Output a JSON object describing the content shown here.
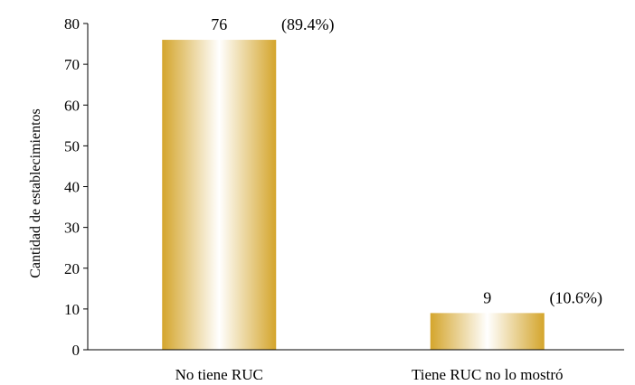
{
  "chart_data": {
    "type": "bar",
    "title": "",
    "xlabel": "",
    "ylabel": "Cantidad de establecimientos",
    "ylim": [
      0,
      80
    ],
    "yticks": [
      0,
      10,
      20,
      30,
      40,
      50,
      60,
      70,
      80
    ],
    "grid": false,
    "legend": "none",
    "categories": [
      "No tiene RUC",
      "Tiene RUC no lo mostró"
    ],
    "values": [
      76,
      9
    ],
    "value_labels": [
      "76",
      "9"
    ],
    "percent_labels": [
      "(89.4%)",
      "(10.6%)"
    ],
    "bar_color": "#D4A52C",
    "bar_highlight_color": "#FFFFFF"
  }
}
